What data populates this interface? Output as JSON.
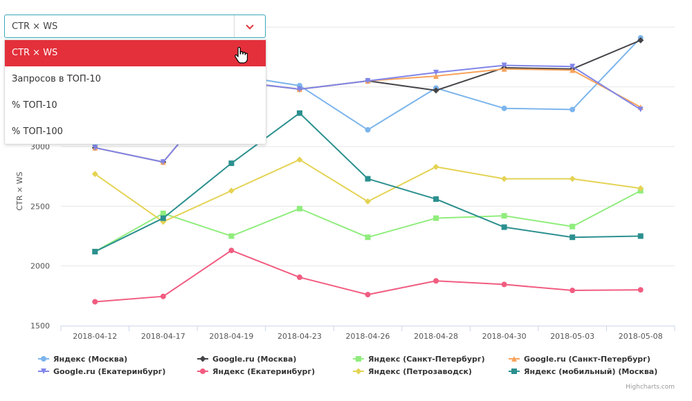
{
  "dropdown": {
    "selected": "CTR × WS",
    "options": [
      "CTR × WS",
      "Запросов в ТОП-10",
      "% ТОП-10",
      "% ТОП-100"
    ]
  },
  "credits": "Highcharts.com",
  "chart_data": {
    "type": "line",
    "ylabel": "CTR × WS",
    "yticks": [
      1500,
      2000,
      2500,
      3000
    ],
    "ylim": [
      1500,
      4100
    ],
    "grid": true,
    "legend_placement": "bottom",
    "categories": [
      "2018-04-12",
      "2018-04-17",
      "2018-04-19",
      "2018-04-23",
      "2018-04-26",
      "2018-04-28",
      "2018-04-30",
      "2018-05-03",
      "2018-05-08"
    ],
    "series": [
      {
        "name": "Яндекс (Москва)",
        "color": "#7cb5ec",
        "marker": "circle",
        "values": [
          3020,
          3040,
          3600,
          3510,
          3140,
          3490,
          3320,
          3310,
          3910
        ]
      },
      {
        "name": "Google.ru (Москва)",
        "color": "#434348",
        "marker": "diamond",
        "values": [
          2990,
          2870,
          3550,
          3480,
          3550,
          3470,
          3660,
          3650,
          3890
        ]
      },
      {
        "name": "Яндекс (Санкт-Петербург)",
        "color": "#90ed7d",
        "marker": "square",
        "values": [
          2120,
          2440,
          2250,
          2480,
          2240,
          2400,
          2420,
          2330,
          2630
        ]
      },
      {
        "name": "Google.ru (Санкт-Петербург)",
        "color": "#f7a35c",
        "marker": "triangle",
        "values": [
          2990,
          2870,
          3550,
          3480,
          3550,
          3590,
          3650,
          3640,
          3330
        ]
      },
      {
        "name": "Google.ru (Екатеринбург)",
        "color": "#8085e9",
        "marker": "triangle-down",
        "values": [
          2990,
          2870,
          3550,
          3480,
          3550,
          3620,
          3680,
          3670,
          3310
        ]
      },
      {
        "name": "Яндекс (Екатеринбург)",
        "color": "#f15c80",
        "marker": "circle",
        "values": [
          1700,
          1745,
          2130,
          1905,
          1760,
          1875,
          1845,
          1795,
          1800
        ]
      },
      {
        "name": "Яндекс (Петрозаводск)",
        "color": "#e4d354",
        "marker": "diamond",
        "values": [
          2770,
          2370,
          2630,
          2890,
          2540,
          2830,
          2730,
          2730,
          2650
        ]
      },
      {
        "name": "Яндекс (мобильный) (Москва)",
        "color": "#2b908f",
        "marker": "square",
        "values": [
          2120,
          2400,
          2860,
          3280,
          2730,
          2560,
          2325,
          2240,
          2250
        ]
      }
    ]
  }
}
